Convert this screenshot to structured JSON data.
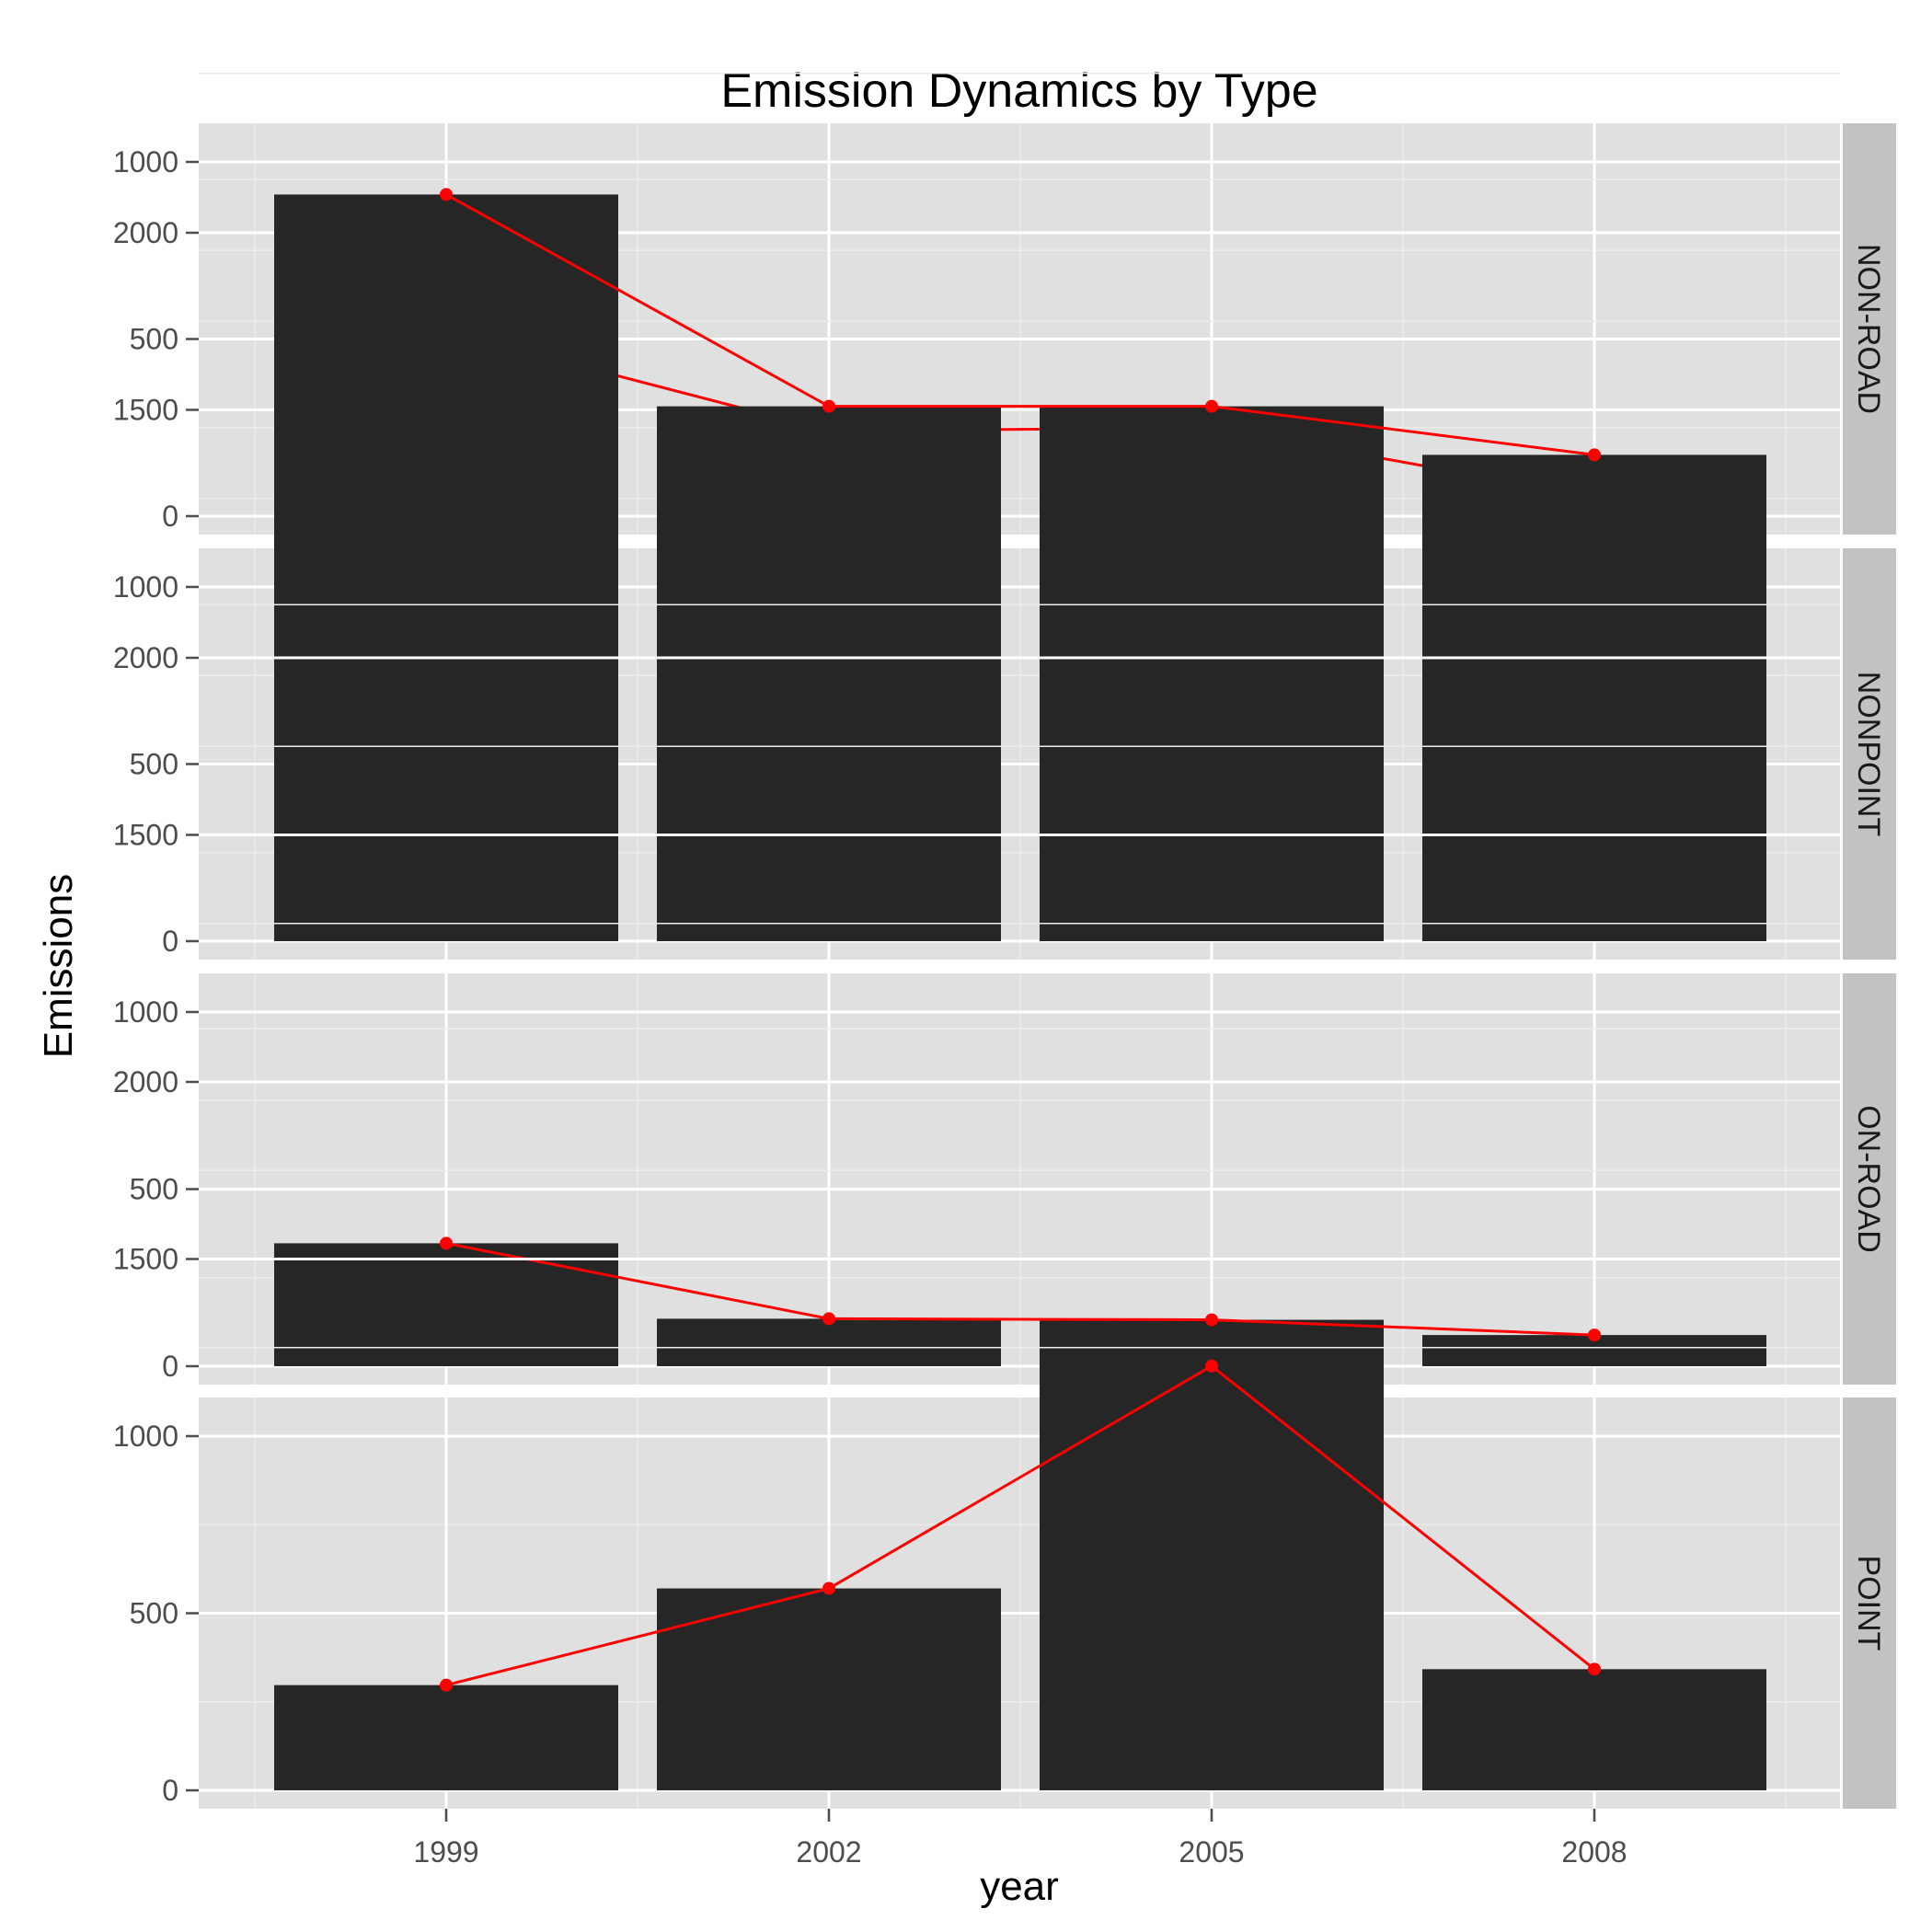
{
  "chart_data": {
    "type": "bar",
    "title": "Emission Dynamics by Type",
    "xlabel": "year",
    "ylabel": "Emissions",
    "categories": [
      "1999",
      "2002",
      "2005",
      "2008"
    ],
    "ylim": [
      0,
      2200
    ],
    "yticks": [
      0,
      500,
      1000,
      1500,
      2000
    ],
    "grid": true,
    "legend": "none",
    "overlay": "line with points connecting bar tops",
    "colors": {
      "panel_background": "#e0e0e0",
      "grid_major": "#ffffff",
      "grid_minor": "#ececec",
      "bar": "#262626",
      "line": "#ff0000",
      "strip_background": "#c2c2c2"
    },
    "facets": [
      {
        "name": "NON-ROAD",
        "values": [
          522,
          241,
          249,
          56
        ]
      },
      {
        "name": "NONPOINT",
        "values": [
          2108,
          1510,
          1510,
          1373
        ]
      },
      {
        "name": "ON-ROAD",
        "values": [
          347,
          134,
          131,
          88
        ]
      },
      {
        "name": "POINT",
        "values": [
          297,
          570,
          1198,
          342
        ]
      }
    ]
  }
}
